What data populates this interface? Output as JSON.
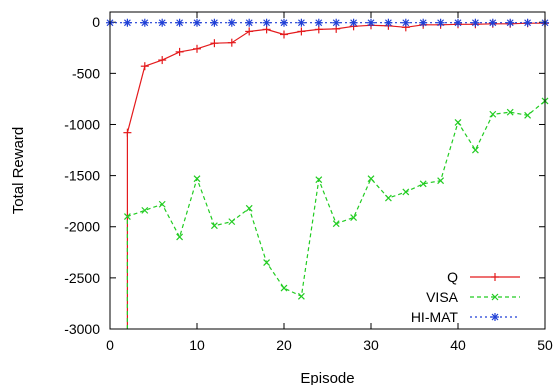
{
  "chart_data": {
    "type": "line",
    "xlabel": "Episode",
    "ylabel": "Total Reward",
    "xlim": [
      0,
      50
    ],
    "ylim": [
      -3000,
      100
    ],
    "xticks": [
      0,
      10,
      20,
      30,
      40,
      50
    ],
    "yticks": [
      0,
      -500,
      -1000,
      -1500,
      -2000,
      -2500,
      -3000
    ],
    "grid": false,
    "legend_position": "bottom-right",
    "series": [
      {
        "name": "Q",
        "color": "#e41a1c",
        "line_style": "solid",
        "marker": "plus",
        "x": [
          2,
          4,
          6,
          8,
          10,
          12,
          14,
          16,
          18,
          20,
          22,
          24,
          26,
          28,
          30,
          32,
          34,
          36,
          38,
          40,
          42,
          44,
          46,
          48,
          50
        ],
        "y": [
          -1080,
          -430,
          -370,
          -290,
          -260,
          -205,
          -200,
          -90,
          -70,
          -120,
          -90,
          -70,
          -65,
          -40,
          -30,
          -35,
          -50,
          -25,
          -25,
          -20,
          -20,
          -15,
          -15,
          -10,
          -10
        ],
        "first_drop_to": -3000
      },
      {
        "name": "VISA",
        "color": "#22cc22",
        "line_style": "dashed",
        "marker": "cross",
        "x": [
          2,
          4,
          6,
          8,
          10,
          12,
          14,
          16,
          18,
          20,
          22,
          24,
          26,
          28,
          30,
          32,
          34,
          36,
          38,
          40,
          42,
          44,
          46,
          48,
          50
        ],
        "y": [
          -1900,
          -1840,
          -1780,
          -2100,
          -1530,
          -1990,
          -1950,
          -1820,
          -2350,
          -2600,
          -2680,
          -1540,
          -1970,
          -1910,
          -1530,
          -1720,
          -1660,
          -1580,
          -1550,
          -980,
          -1250,
          -900,
          -880,
          -910,
          -770
        ],
        "first_drop_to": -3000
      },
      {
        "name": "HI-MAT",
        "color": "#1f3fd6",
        "line_style": "dotted",
        "marker": "star",
        "x": [
          0,
          2,
          4,
          6,
          8,
          10,
          12,
          14,
          16,
          18,
          20,
          22,
          24,
          26,
          28,
          30,
          32,
          34,
          36,
          38,
          40,
          42,
          44,
          46,
          48,
          50
        ],
        "y": [
          -5,
          -5,
          -5,
          -5,
          -5,
          -5,
          -5,
          -5,
          -5,
          -5,
          -5,
          -5,
          -5,
          -5,
          -5,
          -5,
          -5,
          -5,
          -5,
          -5,
          -5,
          -5,
          -5,
          -5,
          -5,
          -5
        ]
      }
    ]
  }
}
